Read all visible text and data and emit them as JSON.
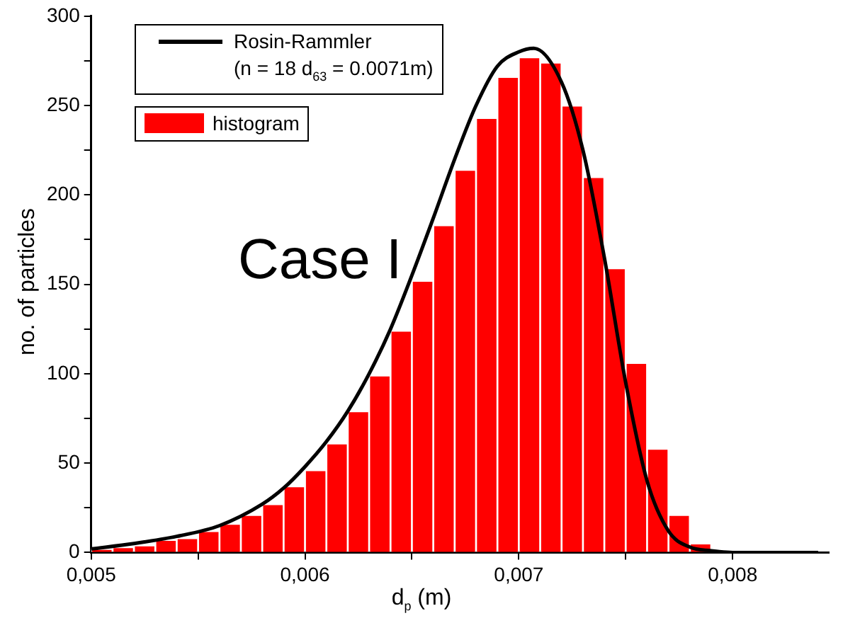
{
  "chart_data": {
    "type": "histogram",
    "xlabel": "d$_{p}$ (m)",
    "ylabel": "no. of particles",
    "annotations": [
      "Case I"
    ],
    "bins": [
      0.005,
      0.0051,
      0.0052,
      0.0053,
      0.0054,
      0.0055,
      0.0056,
      0.0057,
      0.0058,
      0.0059,
      0.006,
      0.0061,
      0.0062,
      0.0063,
      0.0064,
      0.0065,
      0.0066,
      0.0067,
      0.0068,
      0.0069,
      0.007,
      0.0071,
      0.0072,
      0.0073,
      0.0074,
      0.0075,
      0.0076,
      0.0077,
      0.0078,
      0.0079,
      0.008
    ],
    "series": [
      {
        "type": "histogram",
        "name": "histogram",
        "color": "#ff0000",
        "values": [
          2,
          3,
          4,
          7,
          8,
          12,
          16,
          21,
          27,
          37,
          46,
          61,
          79,
          99,
          124,
          152,
          183,
          214,
          243,
          266,
          277,
          274,
          250,
          210,
          159,
          106,
          58,
          21,
          5,
          1
        ]
      },
      {
        "type": "line",
        "name": "Rosin-Rammler\n(n = 18  d$_{63}$ = 0.0071m)",
        "color": "#000000",
        "x": [
          0.005,
          0.0052,
          0.0054,
          0.0056,
          0.0058,
          0.0059,
          0.006,
          0.0061,
          0.0062,
          0.0063,
          0.0064,
          0.0065,
          0.0066,
          0.0067,
          0.0068,
          0.0069,
          0.007,
          0.00707,
          0.0072,
          0.0073,
          0.0074,
          0.0075,
          0.0076,
          0.0077,
          0.0078,
          0.0079,
          0.008,
          0.0082,
          0.0084
        ],
        "values": [
          2,
          5,
          9,
          15,
          27,
          36,
          48,
          62,
          79,
          100,
          125,
          155,
          187,
          220,
          250,
          272,
          280,
          282,
          263,
          225,
          165,
          95,
          40,
          12,
          3,
          1,
          0,
          0,
          0
        ]
      }
    ],
    "xlim": [
      0.005,
      0.00845
    ],
    "ylim": [
      0,
      300
    ],
    "xticks": [
      {
        "value": 0.005,
        "label": "0,005"
      },
      {
        "value": 0.0055,
        "label": null
      },
      {
        "value": 0.006,
        "label": "0,006"
      },
      {
        "value": 0.0065,
        "label": null
      },
      {
        "value": 0.007,
        "label": "0,007"
      },
      {
        "value": 0.0075,
        "label": null
      },
      {
        "value": 0.008,
        "label": "0,008"
      }
    ],
    "yticks": [
      0,
      {
        "value": 25,
        "label": null
      },
      50,
      {
        "value": 75,
        "label": null
      },
      100,
      {
        "value": 125,
        "label": null
      },
      150,
      {
        "value": 175,
        "label": null
      },
      200,
      {
        "value": 225,
        "label": null
      },
      250,
      {
        "value": 275,
        "label": null
      },
      300
    ],
    "legend": "top left"
  }
}
